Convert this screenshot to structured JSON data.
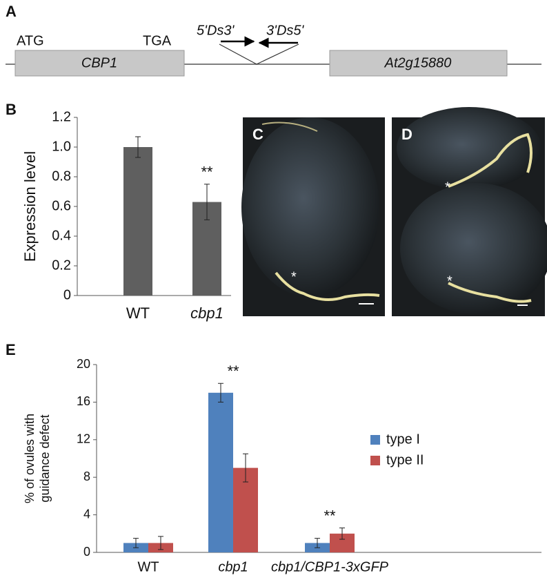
{
  "panel_labels": [
    "A",
    "B",
    "E"
  ],
  "diagram": {
    "start": "ATG",
    "stop": "TGA",
    "left_primer": "5'Ds3'",
    "right_primer": "3'Ds5'",
    "genes": [
      "CBP1",
      "At2g15880"
    ]
  },
  "images": [
    {
      "label": "C",
      "marks": [
        "*"
      ]
    },
    {
      "label": "D",
      "marks": [
        "*",
        "*"
      ]
    }
  ],
  "chart_data": [
    {
      "type": "bar",
      "y_label": "Expression level",
      "categories": [
        "WT",
        "cbp1"
      ],
      "values": [
        1.0,
        0.63
      ],
      "errors": [
        0.07,
        0.12
      ],
      "color": "#5f5f5f",
      "annotations": [
        {
          "index": 1,
          "text": "**"
        }
      ],
      "ylim": [
        0,
        1.2
      ],
      "yticks": [
        0,
        0.2,
        0.4,
        0.6,
        0.8,
        {
          "value": 1,
          "label": "1.0"
        },
        1.2
      ]
    },
    {
      "type": "grouped-bar",
      "y_label": [
        "% of ovules with",
        "guidance defect"
      ],
      "categories": [
        "WT",
        "cbp1",
        "cbp1/CBP1-3xGFP"
      ],
      "series": [
        {
          "name": "type I",
          "color": "#4f81bd",
          "values": [
            1,
            17,
            1
          ],
          "errors": [
            0.5,
            1,
            0.5
          ]
        },
        {
          "name": "type II",
          "color": "#c0504d",
          "values": [
            1,
            9,
            2
          ],
          "errors": [
            0.7,
            1.5,
            0.6
          ]
        }
      ],
      "annotations": [
        {
          "index": 1,
          "text": "**"
        },
        {
          "index": 2,
          "text": "**"
        }
      ],
      "ylim": [
        0,
        20
      ],
      "yticks": [
        0,
        4,
        8,
        12,
        16,
        20
      ],
      "legend": "right"
    }
  ]
}
